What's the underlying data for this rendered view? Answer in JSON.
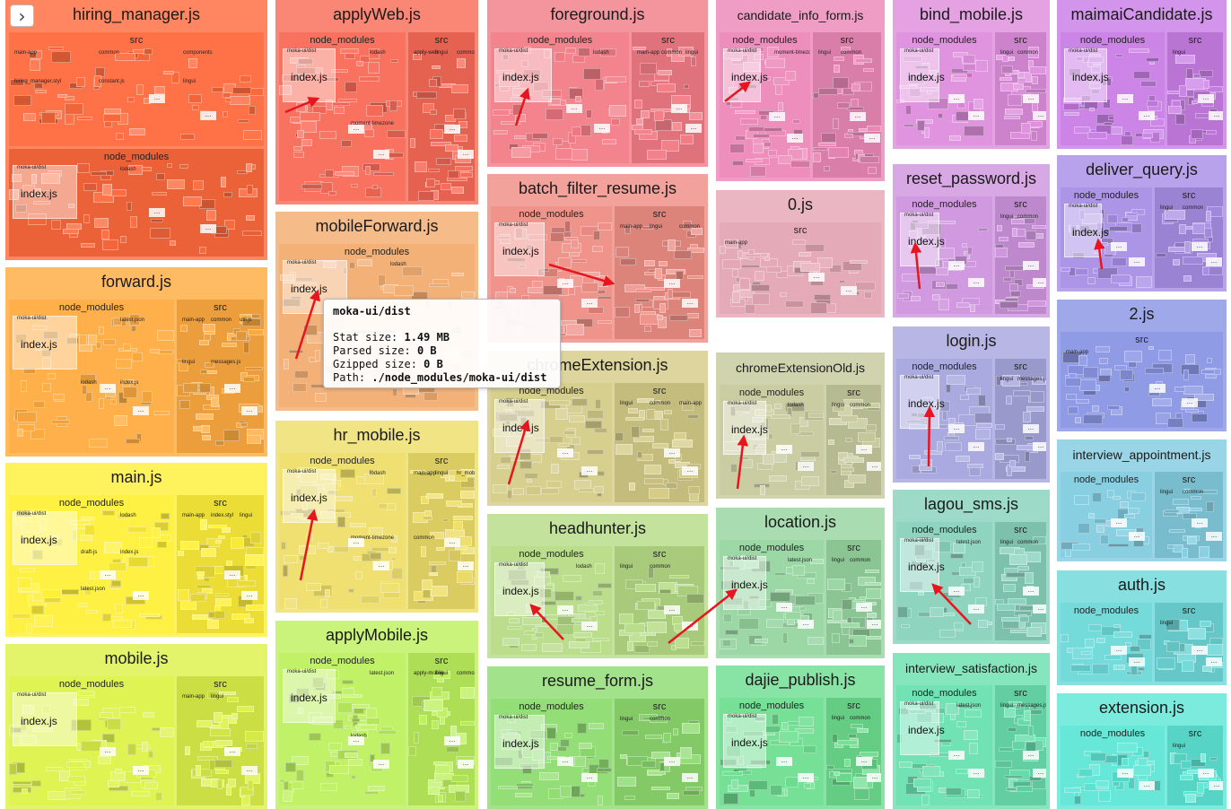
{
  "ui": {
    "toggle_icon": "chevron-right-icon",
    "toggle_glyph": "›",
    "ellipsis": "..."
  },
  "tooltip": {
    "title": "moka-ui/dist",
    "stat_label": "Stat size:",
    "stat_value": "1.49 MB",
    "parsed_label": "Parsed size:",
    "parsed_value": "0 B",
    "gzipped_label": "Gzipped size:",
    "gzipped_value": "0 B",
    "path_label": "Path:",
    "path_value": "./node_modules/moka-ui/dist"
  },
  "bundles": [
    {
      "name": "hiring_manager.js",
      "color": "#ff6b3d",
      "groups": [
        {
          "name": "src",
          "subs": [
            "main-app",
            "common",
            "components",
            "hiring_manager.styl",
            "constant.js",
            "lingui"
          ]
        },
        {
          "name": "node_modules",
          "index": "index.js",
          "subs": [
            "moka-ui/dist",
            "lodash"
          ]
        }
      ]
    },
    {
      "name": "applyWeb.js",
      "color": "#f96b58",
      "groups": [
        {
          "name": "node_modules",
          "index": "index.js",
          "subs": [
            "moka-ui/dist",
            "lodash",
            "moment-timezone"
          ]
        },
        {
          "name": "src",
          "subs": [
            "apply-web",
            "lingui",
            "common"
          ]
        }
      ]
    },
    {
      "name": "foreground.js",
      "color": "#f27c86",
      "groups": [
        {
          "name": "node_modules",
          "index": "index.js",
          "subs": [
            "moka-ui/dist",
            "lodash"
          ]
        },
        {
          "name": "src",
          "subs": [
            "main-app",
            "common",
            "lingui"
          ]
        }
      ]
    },
    {
      "name": "candidate_info_form.js",
      "color": "#ec88b8",
      "groups": [
        {
          "name": "node_modules",
          "index": "index.js",
          "subs": [
            "moka-ui/dist",
            "moment-timezone"
          ]
        },
        {
          "name": "src",
          "subs": [
            "lingui",
            "common"
          ]
        }
      ]
    },
    {
      "name": "bind_mobile.js",
      "color": "#de8edd",
      "groups": [
        {
          "name": "node_modules",
          "index": "index.js",
          "subs": [
            "moka-ui/dist"
          ]
        },
        {
          "name": "src",
          "subs": [
            "lingui",
            "common"
          ]
        }
      ]
    },
    {
      "name": "maimaiCandidate.js",
      "color": "#c97ee6",
      "groups": [
        {
          "name": "node_modules",
          "index": "index.js",
          "subs": [
            "moka-ui/dist"
          ]
        },
        {
          "name": "src",
          "subs": [
            "lingui"
          ]
        }
      ]
    },
    {
      "name": "batch_filter_resume.js",
      "color": "#ef8e85",
      "groups": [
        {
          "name": "node_modules",
          "index": "index.js",
          "subs": [
            "moka-ui/dist"
          ]
        },
        {
          "name": "src",
          "subs": [
            "main-app",
            "lingui",
            "common"
          ]
        }
      ]
    },
    {
      "name": "0.js",
      "color": "#e4a6b4",
      "groups": [
        {
          "name": "src",
          "subs": [
            "main-app"
          ]
        }
      ]
    },
    {
      "name": "reset_password.js",
      "color": "#cf95de",
      "groups": [
        {
          "name": "node_modules",
          "index": "index.js",
          "subs": [
            "moka-ui/dist"
          ]
        },
        {
          "name": "src",
          "subs": [
            "lingui",
            "common"
          ]
        }
      ]
    },
    {
      "name": "deliver_query.js",
      "color": "#a88ee6",
      "groups": [
        {
          "name": "node_modules",
          "index": "index.js",
          "subs": [
            "moka-ui/dist"
          ]
        },
        {
          "name": "src",
          "subs": [
            "lingui",
            "common"
          ]
        }
      ]
    },
    {
      "name": "forward.js",
      "color": "#ffac40",
      "groups": [
        {
          "name": "node_modules",
          "index": "index.js",
          "subs": [
            "moka-ui/dist",
            "latest.json",
            "lodash",
            "index.js"
          ]
        },
        {
          "name": "src",
          "subs": [
            "main-app",
            "common",
            "util.js",
            "lingui",
            "messages.js"
          ]
        }
      ]
    },
    {
      "name": "mobileForward.js",
      "color": "#f3ad70",
      "groups": [
        {
          "name": "node_modules",
          "index": "index.js",
          "subs": [
            "moka-ui/dist",
            "lodash",
            "moment-timezone"
          ]
        }
      ]
    },
    {
      "name": "chromeExtension.js",
      "color": "#d5cc88",
      "groups": [
        {
          "name": "node_modules",
          "index": "index.js",
          "subs": [
            "moka-ui/dist"
          ]
        },
        {
          "name": "src",
          "subs": [
            "lingui",
            "common",
            "main-app"
          ]
        }
      ]
    },
    {
      "name": "chromeExtensionOld.js",
      "color": "#c6ca9c",
      "groups": [
        {
          "name": "node_modules",
          "index": "index.js",
          "subs": [
            "moka-ui/dist",
            "lodash"
          ]
        },
        {
          "name": "src",
          "subs": [
            "lingui",
            "common"
          ]
        }
      ]
    },
    {
      "name": "login.js",
      "color": "#a7a6de",
      "groups": [
        {
          "name": "node_modules",
          "index": "index.js",
          "subs": [
            "moka-ui/dist"
          ]
        },
        {
          "name": "src",
          "subs": [
            "lingui",
            "messages.js"
          ]
        }
      ]
    },
    {
      "name": "2.js",
      "color": "#8a96e4",
      "groups": [
        {
          "name": "src",
          "subs": [
            "main-app"
          ]
        }
      ]
    },
    {
      "name": "main.js",
      "color": "#fff03a",
      "groups": [
        {
          "name": "node_modules",
          "index": "index.js",
          "subs": [
            "moka-ui/dist",
            "lodash",
            "draft-js",
            "index.js",
            "latest.json"
          ]
        },
        {
          "name": "src",
          "subs": [
            "main-app",
            "index.styl",
            "lingui"
          ]
        }
      ]
    },
    {
      "name": "hr_mobile.js",
      "color": "#eede6a",
      "groups": [
        {
          "name": "node_modules",
          "index": "index.js",
          "subs": [
            "moka-ui/dist",
            "lodash",
            "moment-timezone"
          ]
        },
        {
          "name": "src",
          "subs": [
            "main-app",
            "lingui",
            "hr_mobile",
            "common"
          ]
        }
      ]
    },
    {
      "name": "headhunter.js",
      "color": "#b6dc86",
      "groups": [
        {
          "name": "node_modules",
          "index": "index.js",
          "subs": [
            "moka-ui/dist",
            "lodash"
          ]
        },
        {
          "name": "src",
          "subs": [
            "lingui",
            "common"
          ]
        }
      ]
    },
    {
      "name": "location.js",
      "color": "#96d6a0",
      "groups": [
        {
          "name": "node_modules",
          "index": "index.js",
          "subs": [
            "moka-ui/dist",
            "latest.json"
          ]
        },
        {
          "name": "src",
          "subs": [
            "lingui",
            "common"
          ]
        }
      ]
    },
    {
      "name": "lagou_sms.js",
      "color": "#88d2bc",
      "groups": [
        {
          "name": "node_modules",
          "index": "index.js",
          "subs": [
            "moka-ui/dist",
            "latest.json"
          ]
        },
        {
          "name": "src",
          "subs": [
            "lingui",
            "common"
          ]
        }
      ]
    },
    {
      "name": "interview_appointment.js",
      "color": "#82cce0",
      "groups": [
        {
          "name": "node_modules",
          "subs": []
        },
        {
          "name": "src",
          "subs": [
            "lingui",
            "common"
          ]
        }
      ]
    },
    {
      "name": "mobile.js",
      "color": "#ddf24a",
      "groups": [
        {
          "name": "node_modules",
          "index": "index.js",
          "subs": [
            "moka-ui/dist"
          ]
        },
        {
          "name": "src",
          "subs": [
            "main-app",
            "lingui"
          ]
        }
      ]
    },
    {
      "name": "applyMobile.js",
      "color": "#bdf05e",
      "groups": [
        {
          "name": "node_modules",
          "index": "index.js",
          "subs": [
            "moka-ui/dist",
            "latest.json",
            "lodash"
          ]
        },
        {
          "name": "src",
          "subs": [
            "apply-mobile",
            "lingui",
            "common"
          ]
        }
      ]
    },
    {
      "name": "resume_form.js",
      "color": "#8edc70",
      "groups": [
        {
          "name": "node_modules",
          "index": "index.js",
          "subs": [
            "moka-ui/dist"
          ]
        },
        {
          "name": "src",
          "subs": [
            "lingui",
            "common"
          ]
        }
      ]
    },
    {
      "name": "dajie_publish.js",
      "color": "#6ede90",
      "groups": [
        {
          "name": "node_modules",
          "index": "index.js",
          "subs": [
            "moka-ui/dist"
          ]
        },
        {
          "name": "src",
          "subs": [
            "lingui",
            "common"
          ]
        }
      ]
    },
    {
      "name": "interview_satisfaction.js",
      "color": "#6ae0b0",
      "groups": [
        {
          "name": "node_modules",
          "index": "index.js",
          "subs": [
            "moka-ui/dist",
            "latest.json"
          ]
        },
        {
          "name": "src",
          "subs": [
            "lingui",
            "messages.js"
          ]
        }
      ]
    },
    {
      "name": "auth.js",
      "color": "#6ed8d8",
      "groups": [
        {
          "name": "node_modules",
          "subs": []
        },
        {
          "name": "src",
          "subs": [
            "lingui"
          ]
        }
      ]
    },
    {
      "name": "extension.js",
      "color": "#5ee6d6",
      "groups": [
        {
          "name": "node_modules",
          "subs": []
        },
        {
          "name": "src",
          "subs": [
            "lingui"
          ]
        }
      ]
    }
  ]
}
